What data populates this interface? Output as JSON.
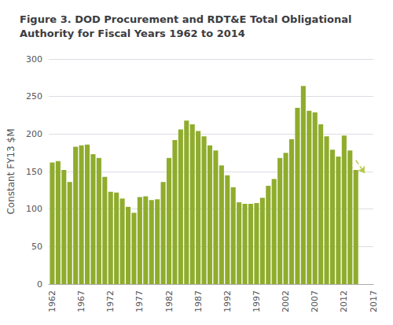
{
  "chart_data": {
    "type": "bar",
    "title": "Figure 3. DOD Procurement and RDT&E Total Obligational\nAuthority for Fiscal Years 1962 to 2014",
    "ylabel": "Constant FY13 $M",
    "x": [
      1962,
      1963,
      1964,
      1965,
      1966,
      1967,
      1968,
      1969,
      1970,
      1971,
      1972,
      1973,
      1974,
      1975,
      1976,
      1977,
      1978,
      1979,
      1980,
      1981,
      1982,
      1983,
      1984,
      1985,
      1986,
      1987,
      1988,
      1989,
      1990,
      1991,
      1992,
      1993,
      1994,
      1995,
      1996,
      1997,
      1998,
      1999,
      2000,
      2001,
      2002,
      2003,
      2004,
      2005,
      2006,
      2007,
      2008,
      2009,
      2010,
      2011,
      2012,
      2013,
      2014
    ],
    "values": [
      162,
      164,
      152,
      136,
      183,
      185,
      186,
      173,
      168,
      143,
      123,
      122,
      114,
      103,
      95,
      116,
      117,
      112,
      113,
      136,
      168,
      192,
      206,
      218,
      213,
      204,
      197,
      185,
      178,
      158,
      145,
      129,
      109,
      107,
      107,
      108,
      115,
      131,
      140,
      168,
      175,
      193,
      235,
      264,
      231,
      229,
      213,
      197,
      179,
      170,
      198,
      178,
      152
    ],
    "color": "#8fac2c",
    "xlim": [
      1961.4,
      2017
    ],
    "xticks": [
      1962,
      1967,
      1972,
      1977,
      1982,
      1987,
      1992,
      1997,
      2002,
      2007,
      2012,
      2017
    ],
    "ylim": [
      0,
      300
    ],
    "yticks": [
      0,
      50,
      100,
      150,
      200,
      250,
      300
    ],
    "grid": true,
    "arrows": [
      {
        "from": [
          2014,
          165
        ],
        "to": [
          2015.5,
          148
        ],
        "color": "#b5c842"
      }
    ]
  }
}
